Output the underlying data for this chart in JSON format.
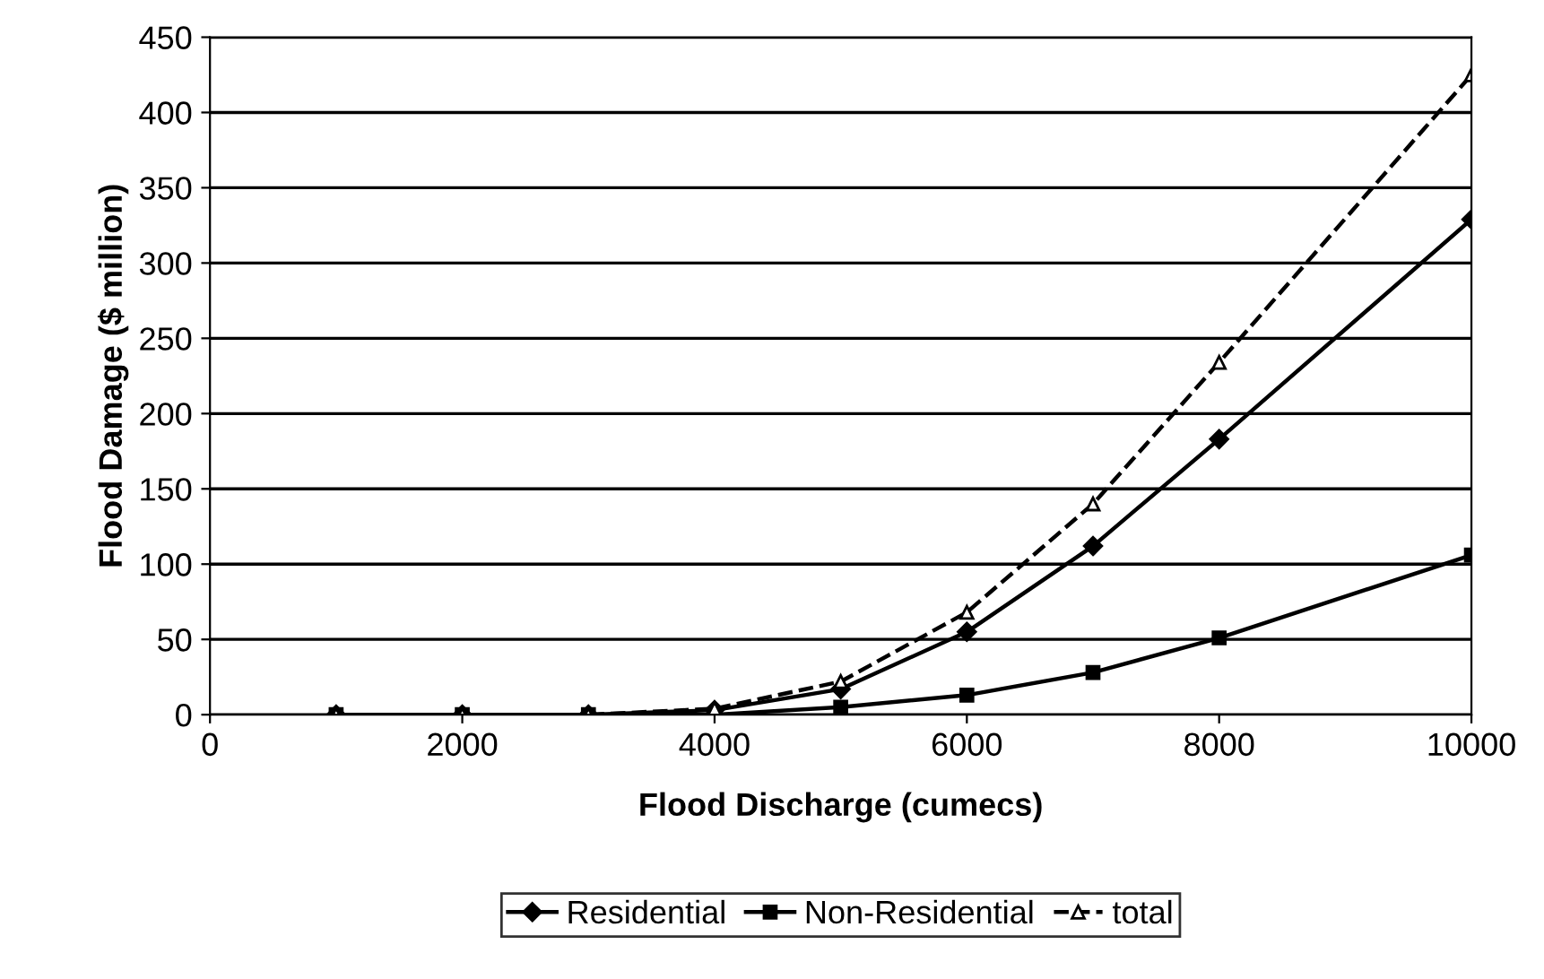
{
  "chart_data": {
    "type": "line",
    "xlabel": "Flood Discharge (cumecs)",
    "ylabel": "Flood Damage ($ million)",
    "x": [
      1000,
      2000,
      3000,
      4000,
      5000,
      6000,
      7000,
      8000,
      10000
    ],
    "series": [
      {
        "name": "Residential",
        "color": "#000000",
        "marker": "diamond",
        "line_style": "solid",
        "values": [
          0,
          0,
          0,
          3,
          17,
          55,
          112,
          183,
          329
        ]
      },
      {
        "name": "Non-Residential",
        "color": "#000000",
        "marker": "square",
        "line_style": "solid",
        "values": [
          0,
          0,
          0,
          0,
          5,
          13,
          28,
          51,
          106
        ]
      },
      {
        "name": "total",
        "color": "#000000",
        "marker": "triangle",
        "line_style": "dashed",
        "values": [
          0,
          0,
          0,
          4,
          22,
          68,
          140,
          234,
          425
        ]
      }
    ],
    "xlim": [
      0,
      10000
    ],
    "xticks": [
      0,
      2000,
      4000,
      6000,
      8000,
      10000
    ],
    "ylim": [
      0,
      450
    ],
    "yticks": [
      0,
      50,
      100,
      150,
      200,
      250,
      300,
      350,
      400,
      450
    ],
    "grid": "y",
    "legend": "bottom"
  }
}
